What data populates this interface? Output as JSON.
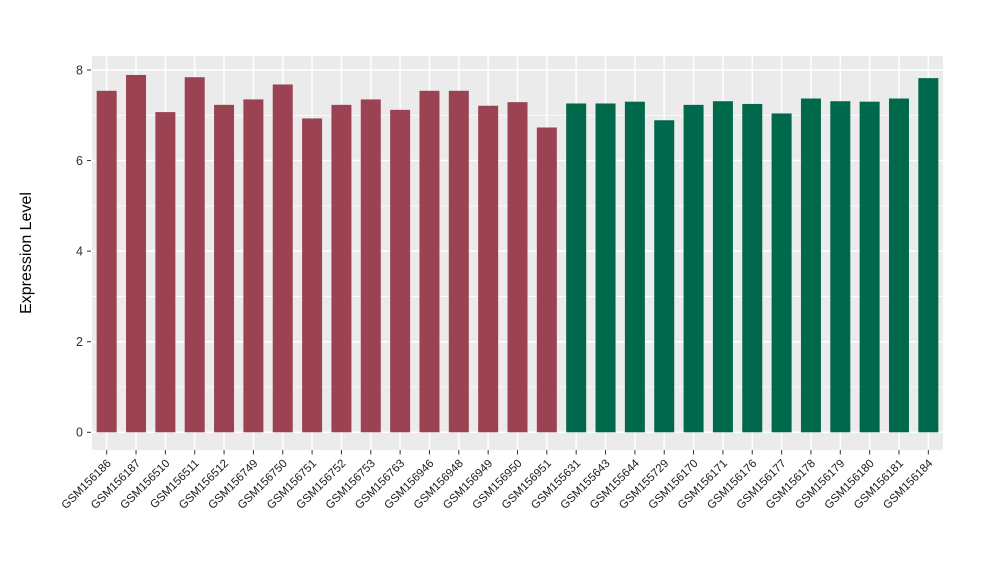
{
  "figure": {
    "background": "#FFFFFF"
  },
  "chart_data": {
    "type": "bar",
    "title": "",
    "xlabel": "",
    "ylabel": "Expression Level",
    "legend_position": "none",
    "panel_background": "#EBEBEB",
    "gridline_color": "#FFFFFF",
    "tick_mark_color": "#333333",
    "yticks": [
      0,
      2,
      4,
      6,
      8
    ],
    "yticks_minor": [
      1,
      3,
      5,
      7
    ],
    "ylim": [
      0,
      8.31
    ],
    "x_tick_rotation_deg": 45,
    "group_colors": {
      "group1": "#9B4352",
      "group2": "#00694B"
    },
    "categories": [
      "GSM156186",
      "GSM156187",
      "GSM156510",
      "GSM156511",
      "GSM156512",
      "GSM156749",
      "GSM156750",
      "GSM156751",
      "GSM156752",
      "GSM156753",
      "GSM156763",
      "GSM156946",
      "GSM156948",
      "GSM156949",
      "GSM156950",
      "GSM156951",
      "GSM155631",
      "GSM155643",
      "GSM155644",
      "GSM155729",
      "GSM156170",
      "GSM156171",
      "GSM156176",
      "GSM156177",
      "GSM156178",
      "GSM156179",
      "GSM156180",
      "GSM156181",
      "GSM156184"
    ],
    "values": [
      7.54,
      7.89,
      7.07,
      7.84,
      7.23,
      7.35,
      7.68,
      6.93,
      7.23,
      7.35,
      7.12,
      7.54,
      7.54,
      7.21,
      7.29,
      6.73,
      7.26,
      7.26,
      7.3,
      6.89,
      7.23,
      7.31,
      7.25,
      7.04,
      7.37,
      7.31,
      7.3,
      7.37,
      7.82
    ],
    "groups": [
      "group1",
      "group1",
      "group1",
      "group1",
      "group1",
      "group1",
      "group1",
      "group1",
      "group1",
      "group1",
      "group1",
      "group1",
      "group1",
      "group1",
      "group1",
      "group1",
      "group2",
      "group2",
      "group2",
      "group2",
      "group2",
      "group2",
      "group2",
      "group2",
      "group2",
      "group2",
      "group2",
      "group2",
      "group2"
    ]
  }
}
